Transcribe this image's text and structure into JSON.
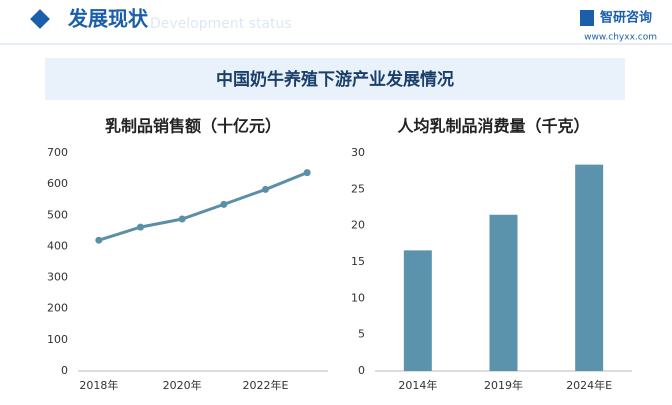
{
  "header": {
    "title": "发展现状",
    "subtitle": "Development status",
    "brand": "智研咨询",
    "url": "www.chyxx.com"
  },
  "banner": {
    "title": "中国奶牛养殖下游产业发展情况"
  },
  "chart_data": [
    {
      "type": "line",
      "title": "乳制品销售额（十亿元）",
      "categories": [
        "2018年",
        null,
        "2020年",
        null,
        "2022年E",
        null
      ],
      "values": [
        420,
        462,
        488,
        535,
        583,
        637
      ],
      "color": "#5b8ea7",
      "ylim": [
        0,
        700
      ],
      "yticks": [
        0,
        100,
        200,
        300,
        400,
        500,
        600,
        700
      ]
    },
    {
      "type": "bar",
      "title": "人均乳制品消费量（千克）",
      "categories": [
        "2014年",
        "2019年",
        "2024年E"
      ],
      "values": [
        16.6,
        21.5,
        28.4
      ],
      "color": "#5b93ad",
      "ylim": [
        0,
        30
      ],
      "yticks": [
        0,
        5,
        10,
        15,
        20,
        25,
        30
      ]
    }
  ]
}
